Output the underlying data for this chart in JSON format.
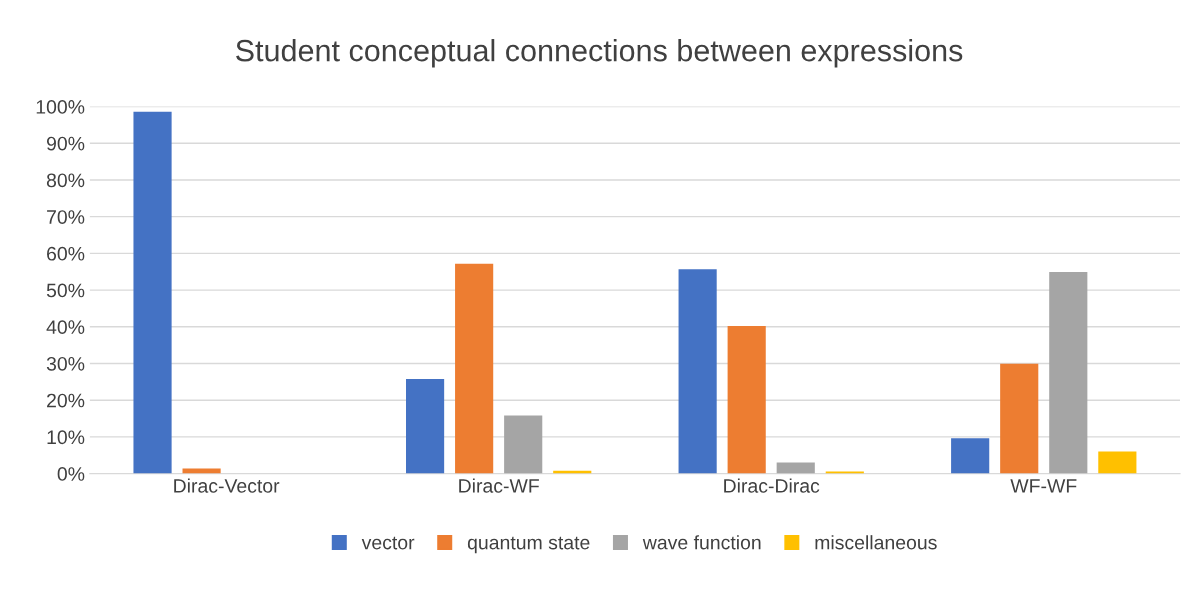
{
  "chart_data": {
    "type": "bar",
    "title": "Student conceptual connections between expressions",
    "categories": [
      "Dirac-Vector",
      "Dirac-WF",
      "Dirac-Dirac",
      "WF-WF"
    ],
    "series": [
      {
        "name": "vector",
        "color": "#4472c4",
        "values": [
          98.6,
          25.8,
          55.7,
          9.6
        ]
      },
      {
        "name": "quantum state",
        "color": "#ed7d31",
        "values": [
          1.4,
          57.2,
          40.2,
          29.9
        ]
      },
      {
        "name": "wave function",
        "color": "#a5a5a5",
        "values": [
          0,
          15.8,
          3.0,
          54.9
        ]
      },
      {
        "name": "miscellaneous",
        "color": "#ffc000",
        "values": [
          0,
          0.8,
          0.6,
          6.0
        ]
      }
    ],
    "ylim": [
      0,
      100
    ],
    "yticks": [
      {
        "value": 0,
        "label": "0%"
      },
      {
        "value": 10,
        "label": "10%"
      },
      {
        "value": 20,
        "label": "20%"
      },
      {
        "value": 30,
        "label": "30%"
      },
      {
        "value": 40,
        "label": "40%"
      },
      {
        "value": 50,
        "label": "50%"
      },
      {
        "value": 60,
        "label": "60%"
      },
      {
        "value": 70,
        "label": "70%"
      },
      {
        "value": 80,
        "label": "80%"
      },
      {
        "value": 90,
        "label": "90%"
      },
      {
        "value": 100,
        "label": "100%"
      }
    ],
    "grid": "y",
    "legend": "bottom"
  }
}
